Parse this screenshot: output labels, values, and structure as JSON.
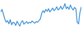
{
  "chart_data": {
    "type": "line",
    "color": "#3a8fd6",
    "tick_labels": false,
    "x": [
      1,
      2,
      3,
      4,
      5,
      6,
      7,
      8,
      9,
      10,
      11,
      12,
      13,
      14,
      15,
      16,
      17,
      18,
      19,
      20,
      21,
      22,
      23,
      24,
      25,
      26,
      27,
      28,
      29,
      30,
      31,
      32,
      33,
      34,
      35,
      36,
      37,
      38,
      39,
      40,
      41,
      42,
      43,
      44,
      45,
      46,
      47,
      48,
      49,
      50,
      51,
      52,
      53,
      54,
      55,
      56,
      57,
      58,
      59,
      60
    ],
    "values": [
      62,
      70,
      55,
      40,
      30,
      35,
      25,
      38,
      22,
      30,
      28,
      20,
      33,
      25,
      18,
      30,
      35,
      24,
      28,
      32,
      26,
      30,
      28,
      34,
      30,
      27,
      32,
      30,
      35,
      40,
      58,
      66,
      60,
      70,
      64,
      72,
      62,
      68,
      74,
      66,
      70,
      78,
      68,
      72,
      80,
      70,
      76,
      88,
      72,
      78,
      70,
      84,
      74,
      68,
      76,
      72,
      30,
      25,
      60,
      78
    ],
    "xlim": [
      1,
      60
    ],
    "ylim": [
      10,
      95
    ]
  }
}
